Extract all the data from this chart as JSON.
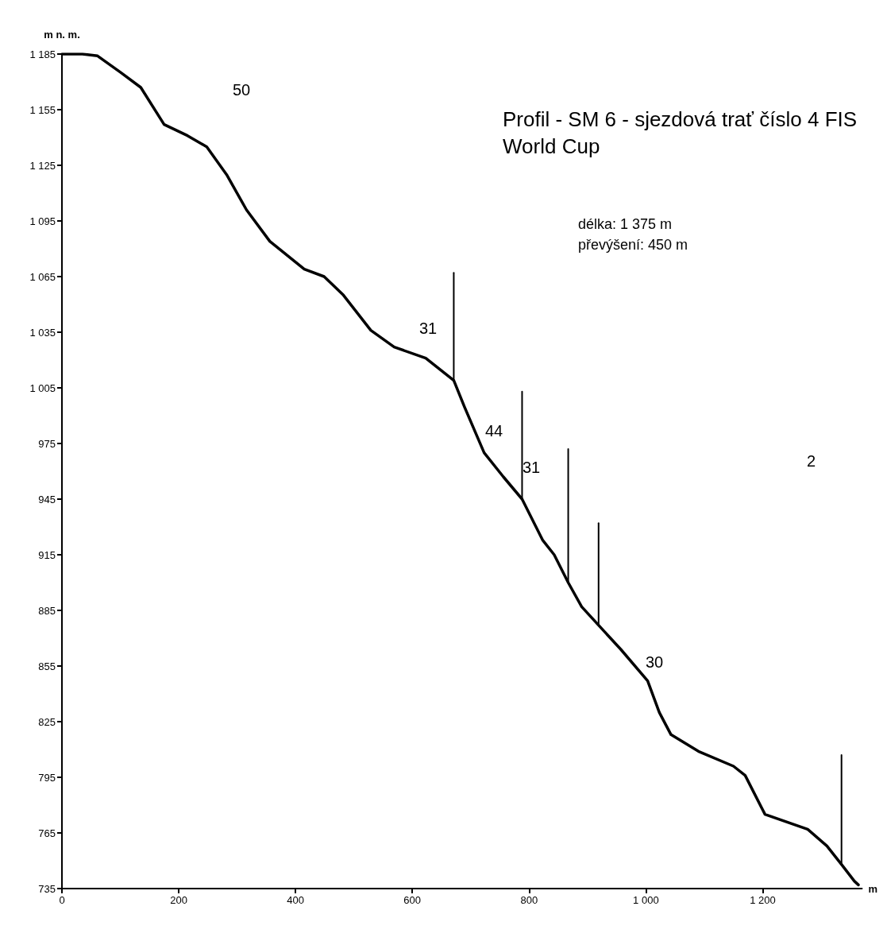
{
  "chart_data": {
    "type": "line",
    "title": "Profil - SM 6 - sjezdová trať číslo 4 FIS\nWorld Cup",
    "xlabel": "m",
    "ylabel": "m n. m.",
    "annotations": [
      "délka: 1 375 m",
      "převýšení: 450 m",
      "50",
      "31",
      "44",
      "31",
      "30",
      "2"
    ],
    "x": [
      0,
      35,
      61,
      101,
      135,
      175,
      215,
      248,
      282,
      316,
      356,
      415,
      449,
      482,
      529,
      569,
      623,
      671,
      689,
      723,
      756,
      788,
      823,
      843,
      867,
      890,
      919,
      957,
      1003,
      1023,
      1043,
      1090,
      1150,
      1170,
      1204,
      1277,
      1310,
      1335,
      1357,
      1364
    ],
    "series": [
      {
        "color": "#000000",
        "values": [
          1185,
          1185,
          1184,
          1175,
          1167,
          1147,
          1141,
          1135,
          1120,
          1101,
          1084,
          1069,
          1065,
          1055,
          1036,
          1027,
          1021,
          1009,
          995,
          970,
          957,
          945,
          923,
          915,
          900,
          887,
          877,
          864,
          847,
          830,
          818,
          809,
          801,
          796,
          775,
          767,
          758,
          748,
          739,
          737
        ]
      },
      {
        "color": "#000000",
        "x": [
          671,
          671
        ],
        "values": [
          1009,
          1067
        ]
      },
      {
        "color": "#000000",
        "x": [
          788,
          788
        ],
        "values": [
          945,
          1003
        ]
      },
      {
        "color": "#000000",
        "x": [
          867,
          867
        ],
        "values": [
          900,
          972
        ]
      },
      {
        "color": "#000000",
        "x": [
          919,
          919
        ],
        "values": [
          877,
          932
        ]
      },
      {
        "color": "#000000",
        "x": [
          1335,
          1335
        ],
        "values": [
          748,
          807
        ]
      }
    ],
    "xlim": [
      0,
      1370
    ],
    "xticks": [
      0,
      200,
      400,
      600,
      800,
      {
        "value": 1000,
        "label": "1 000"
      },
      {
        "value": 1200,
        "label": "1 200"
      }
    ],
    "ylim": [
      735,
      1185
    ],
    "yticks": [
      735,
      765,
      795,
      825,
      855,
      885,
      915,
      945,
      975,
      {
        "value": 1005,
        "label": "1 005"
      },
      {
        "value": 1035,
        "label": "1 035"
      },
      {
        "value": 1065,
        "label": "1 065"
      },
      {
        "value": 1095,
        "label": "1 095"
      },
      {
        "value": 1125,
        "label": "1 125"
      },
      {
        "value": 1155,
        "label": "1 155"
      },
      {
        "value": 1185,
        "label": "1 185"
      }
    ],
    "grid": false,
    "marker": "none",
    "line_style": "solid"
  }
}
